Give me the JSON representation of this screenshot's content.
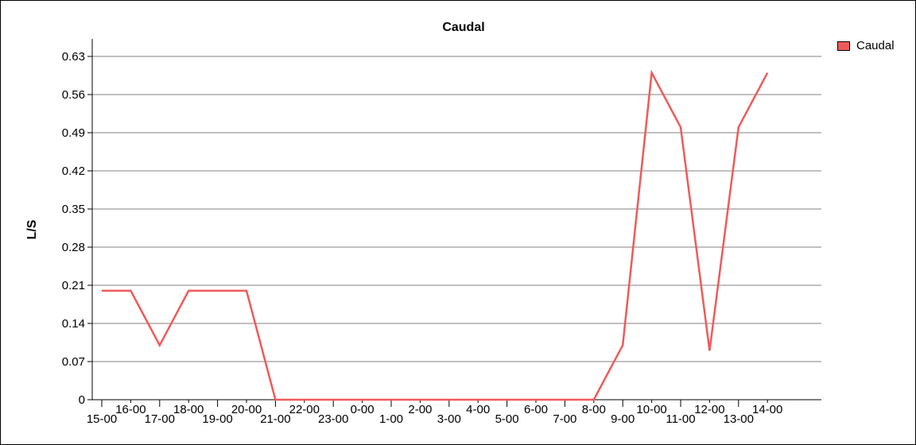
{
  "chart_data": {
    "type": "line",
    "title": "Caudal",
    "ylabel": "L/S",
    "xlabel": "",
    "ylim": [
      0,
      0.63
    ],
    "y_ticks": [
      "0",
      "0.07",
      "0.14",
      "0.21",
      "0.28",
      "0.35",
      "0.42",
      "0.49",
      "0.56",
      "0.63"
    ],
    "grid": "horizontal",
    "legend_position": "top-right",
    "categories": [
      "15-00",
      "16-00",
      "17-00",
      "18-00",
      "19-00",
      "20-00",
      "21-00",
      "22-00",
      "23-00",
      "0-00",
      "1-00",
      "2-00",
      "3-00",
      "4-00",
      "5-00",
      "6-00",
      "7-00",
      "8-00",
      "9-00",
      "10-00",
      "11-00",
      "12-00",
      "13-00",
      "14-00"
    ],
    "series": [
      {
        "name": "Caudal",
        "color": "#f05a5a",
        "values": [
          0.2,
          0.2,
          0.1,
          0.2,
          0.2,
          0.2,
          0,
          0,
          0,
          0,
          0,
          0,
          0,
          0,
          0,
          0,
          0,
          0,
          0.1,
          0.6,
          0.5,
          0.09,
          0.5,
          0.6
        ]
      }
    ]
  }
}
